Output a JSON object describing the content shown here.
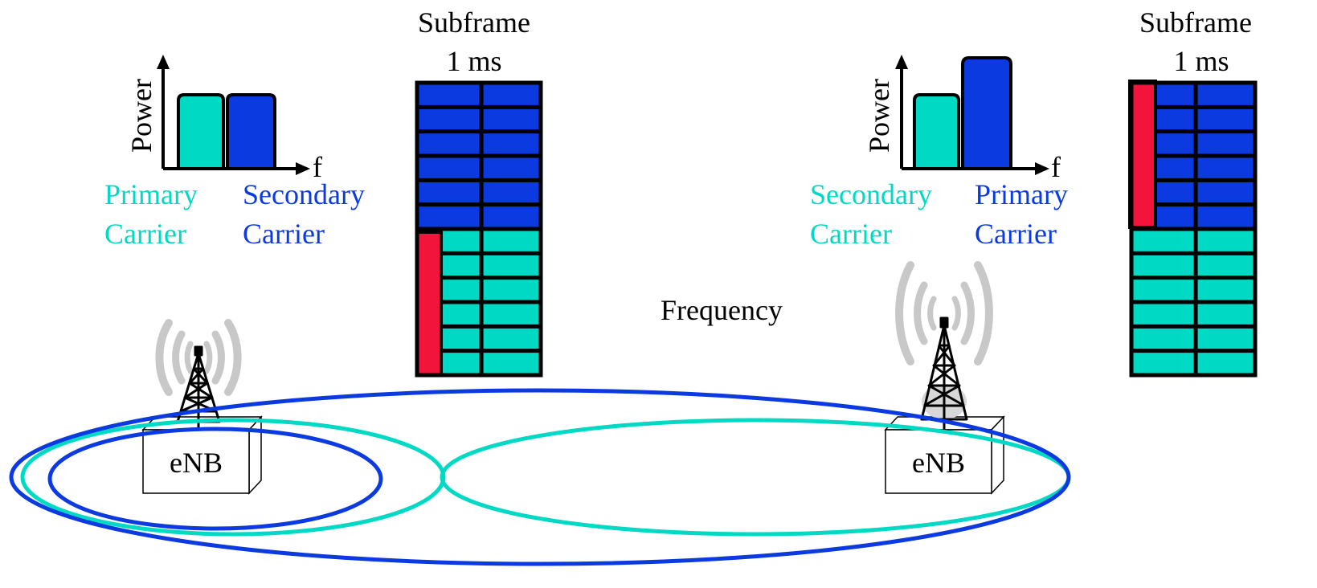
{
  "colors": {
    "primary_teal": "#00D9C4",
    "secondary_blue": "#0A3AE0",
    "control_red": "#F2143A",
    "grid_line": "#000000",
    "antenna_wave": "#C8C8C8",
    "text_black": "#000000"
  },
  "icons": {
    "base_station": "cell-tower-icon",
    "signal": "radio-waves-icon"
  },
  "left_cell": {
    "spectrum": {
      "y_axis_label": "Power",
      "x_axis_label": "f",
      "blocks": [
        {
          "carrier": "primary",
          "color": "#00D9C4",
          "relative_power": 1.0
        },
        {
          "carrier": "secondary",
          "color": "#0A3AE0",
          "relative_power": 1.0
        }
      ]
    },
    "carrier_labels": [
      {
        "line1": "Primary",
        "line2": "Carrier",
        "color": "#00D9C4"
      },
      {
        "line1": "Secondary",
        "line2": "Carrier",
        "color": "#0A3AE0"
      }
    ],
    "subframe": {
      "title_line1": "Subframe",
      "title_line2": "1 ms",
      "top_rows": 6,
      "top_color": "#0A3AE0",
      "bottom_rows": 6,
      "bottom_color": "#00D9C4",
      "control_region": "bottom"
    },
    "enb_label": "eNB"
  },
  "right_cell": {
    "spectrum": {
      "y_axis_label": "Power",
      "x_axis_label": "f",
      "blocks": [
        {
          "carrier": "secondary",
          "color": "#00D9C4",
          "relative_power": 1.0
        },
        {
          "carrier": "primary",
          "color": "#0A3AE0",
          "relative_power": 1.5
        }
      ]
    },
    "carrier_labels": [
      {
        "line1": "Secondary",
        "line2": "Carrier",
        "color": "#00D9C4"
      },
      {
        "line1": "Primary",
        "line2": "Carrier",
        "color": "#0A3AE0"
      }
    ],
    "subframe": {
      "title_line1": "Subframe",
      "title_line2": "1 ms",
      "top_rows": 6,
      "top_color": "#0A3AE0",
      "bottom_rows": 6,
      "bottom_color": "#00D9C4",
      "control_region": "top"
    },
    "enb_label": "eNB"
  },
  "center_label": "Frequency"
}
